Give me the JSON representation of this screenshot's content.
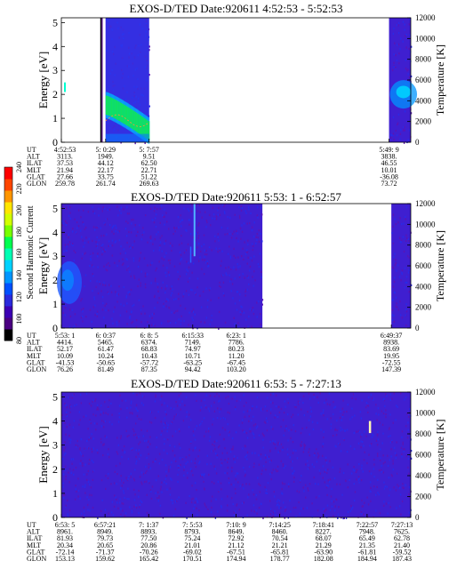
{
  "chart_data": {
    "type": "heatmap",
    "colorbar": {
      "label": "Second Harmonic Current",
      "ticks": [
        "80",
        "100",
        "120",
        "140",
        "160",
        "180",
        "200",
        "220",
        "240"
      ],
      "range": [
        80,
        240
      ],
      "colors": [
        "#000000",
        "#4b0082",
        "#3c00b4",
        "#2a2adc",
        "#0050ff",
        "#0096ff",
        "#00d2ff",
        "#00ffb4",
        "#00ff50",
        "#78ff00",
        "#d2ff00",
        "#ffe600",
        "#ff9600",
        "#ff4600",
        "#ff0000"
      ]
    },
    "panels": [
      {
        "title": "EXOS-D/TED   Date:920611  4:52:53 - 5:52:53",
        "ylabel_left": "Energy [eV]",
        "ylabel_right": "Temperature [K]",
        "yticks_left": [
          "0",
          "1",
          "2",
          "3",
          "4",
          "5"
        ],
        "ylim_left": [
          0,
          5.2
        ],
        "yticks_right": [
          "0",
          "2000",
          "4000",
          "6000",
          "8000",
          "10000",
          "12000"
        ],
        "ylim_right": [
          0,
          12000
        ],
        "row_labels": [
          "UT",
          "ALT",
          "ILAT",
          "MLT",
          "GLAT",
          "GLON"
        ],
        "time_range": [
          "4:52:53",
          "5:52:53"
        ],
        "data_blocks": [
          {
            "start": "5:0:29",
            "end": "5:7:57",
            "state": "measured",
            "feature": "green band, Energy ~1.6 eV at 5:0:29 decreasing to ~0.5 eV by 5:7:57"
          },
          {
            "start": "5:49:9",
            "end": "5:52:53",
            "state": "measured",
            "feature": "enhanced signal near Energy ~2 eV"
          }
        ],
        "columns": [
          {
            "UT": "4:52:53",
            "ALT": "3113.",
            "ILAT": "37.53",
            "MLT": "21.94",
            "GLAT": "27.66",
            "GLON": "259.78"
          },
          {
            "UT": "5: 0:29",
            "ALT": "1949.",
            "ILAT": "44.12",
            "MLT": "22.17",
            "GLAT": "33.75",
            "GLON": "261.74"
          },
          {
            "UT": "5: 7:57",
            "ALT": "9.51",
            "ILAT": "62.50",
            "MLT": "22.71",
            "GLAT": "51.22",
            "GLON": "269.63"
          },
          {
            "UT": "5:49: 9",
            "ALT": "3838.",
            "ILAT": "46.55",
            "MLT": "10.01",
            "GLAT": "-36.08",
            "GLON": "73.72"
          }
        ]
      },
      {
        "title": "EXOS-D/TED   Date:920611  5:53: 1 - 6:52:57",
        "ylabel_left": "Energy [eV]",
        "ylabel_right": "Temperature [K]",
        "yticks_left": [
          "0",
          "1",
          "2",
          "3",
          "4",
          "5"
        ],
        "ylim_left": [
          0,
          5.2
        ],
        "yticks_right": [
          "0",
          "2000",
          "4000",
          "6000",
          "8000",
          "10000",
          "12000"
        ],
        "ylim_right": [
          0,
          12000
        ],
        "row_labels": [
          "UT",
          "ALT",
          "ILAT",
          "MLT",
          "GLAT",
          "GLON"
        ],
        "time_range": [
          "5:53:1",
          "6:52:57"
        ],
        "data_blocks": [
          {
            "start": "5:53:1",
            "end": "6:27:30",
            "state": "measured",
            "feature": "enhanced signal near Energy ~2 eV at 5:53:1; narrow vertical streak near 6:15:33"
          },
          {
            "start": "6:49:37",
            "end": "6:52:57",
            "state": "measured",
            "feature": ""
          }
        ],
        "columns": [
          {
            "UT": "5:53: 1",
            "ALT": "4414.",
            "ILAT": "52.17",
            "MLT": "10.09",
            "GLAT": "-41.53",
            "GLON": "76.26"
          },
          {
            "UT": "6: 0:37",
            "ALT": "5465.",
            "ILAT": "61.47",
            "MLT": "10.24",
            "GLAT": "-50.65",
            "GLON": "81.49"
          },
          {
            "UT": "6: 8: 5",
            "ALT": "6374.",
            "ILAT": "68.83",
            "MLT": "10.43",
            "GLAT": "-57.72",
            "GLON": "87.35"
          },
          {
            "UT": "6:15:33",
            "ALT": "7149.",
            "ILAT": "74.97",
            "MLT": "10.71",
            "GLAT": "-63.25",
            "GLON": "94.42"
          },
          {
            "UT": "6:23: 1",
            "ALT": "7786.",
            "ILAT": "80.23",
            "MLT": "11.20",
            "GLAT": "-67.45",
            "GLON": "103.20"
          },
          {
            "UT": "6:49:37",
            "ALT": "8938.",
            "ILAT": "83.69",
            "MLT": "19.95",
            "GLAT": "-72.55",
            "GLON": "147.39"
          }
        ]
      },
      {
        "title": "EXOS-D/TED   Date:920611  6:53: 5 - 7:27:13",
        "ylabel_left": "Energy [eV]",
        "ylabel_right": "Temperature [K]",
        "yticks_left": [
          "0",
          "1",
          "2",
          "3",
          "4",
          "5"
        ],
        "ylim_left": [
          0,
          5.2
        ],
        "yticks_right": [
          "0",
          "2000",
          "4000",
          "6000",
          "8000",
          "10000",
          "12000"
        ],
        "ylim_right": [
          0,
          12000
        ],
        "row_labels": [
          "UT",
          "ALT",
          "ILAT",
          "MLT",
          "GLAT",
          "GLON"
        ],
        "time_range": [
          "6:53:5",
          "7:27:13"
        ],
        "data_blocks": [
          {
            "start": "6:53:5",
            "end": "7:27:13",
            "state": "measured",
            "feature": "uniform low signal; short bright streak near 7:22:57 at Energy ~3.7 eV"
          }
        ],
        "columns": [
          {
            "UT": "6:53: 5",
            "ALT": "8961.",
            "ILAT": "81.93",
            "MLT": "20.34",
            "GLAT": "-72.14",
            "GLON": "153.13"
          },
          {
            "UT": "6:57:21",
            "ALT": "8949.",
            "ILAT": "79.73",
            "MLT": "20.65",
            "GLAT": "-71.37",
            "GLON": "159.62"
          },
          {
            "UT": "7: 1:37",
            "ALT": "8893.",
            "ILAT": "77.50",
            "MLT": "20.86",
            "GLAT": "-70.26",
            "GLON": "165.42"
          },
          {
            "UT": "7: 5:53",
            "ALT": "8793.",
            "ILAT": "75.24",
            "MLT": "21.01",
            "GLAT": "-69.02",
            "GLON": "170.51"
          },
          {
            "UT": "7:10: 9",
            "ALT": "8649.",
            "ILAT": "72.92",
            "MLT": "21.12",
            "GLAT": "-67.51",
            "GLON": "174.94"
          },
          {
            "UT": "7:14:25",
            "ALT": "8460.",
            "ILAT": "70.54",
            "MLT": "21.21",
            "GLAT": "-65.81",
            "GLON": "178.77"
          },
          {
            "UT": "7:18:41",
            "ALT": "8227.",
            "ILAT": "68.07",
            "MLT": "21.29",
            "GLAT": "-63.90",
            "GLON": "182.08"
          },
          {
            "UT": "7:22:57",
            "ALT": "7948.",
            "ILAT": "65.49",
            "MLT": "21.35",
            "GLAT": "-61.81",
            "GLON": "184.94"
          },
          {
            "UT": "7:27:13",
            "ALT": "7625.",
            "ILAT": "62.78",
            "MLT": "21.40",
            "GLAT": "-59.52",
            "GLON": "187.43"
          }
        ]
      }
    ]
  }
}
